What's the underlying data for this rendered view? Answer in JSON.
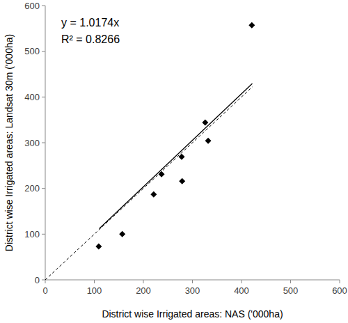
{
  "chart_data": {
    "type": "scatter",
    "x_label": "District wise Irrigated areas: NAS ('000ha)",
    "y_label": "District wise Irrigated areas: Landsat 30m ('000ha)",
    "annotations": [
      "y = 1.0174x",
      "R² = 0.8266"
    ],
    "xlim": [
      0,
      600
    ],
    "ylim": [
      0,
      600
    ],
    "xticks": [
      0,
      100,
      200,
      300,
      400,
      500,
      600
    ],
    "yticks": [
      0,
      100,
      200,
      300,
      400,
      500,
      600
    ],
    "grid": false,
    "series": [
      {
        "type": "scatter",
        "marker": "diamond",
        "color": "#000000",
        "x": [
          109,
          157,
          221,
          237,
          278,
          279,
          326,
          332,
          421
        ],
        "values": [
          73,
          100,
          187,
          231,
          269,
          216,
          344,
          304,
          557
        ]
      },
      {
        "type": "line",
        "line_style": "solid",
        "color": "#000000",
        "x": [
          110,
          422
        ],
        "values": [
          111.9,
          429.3
        ]
      },
      {
        "type": "line",
        "line_style": "dashed",
        "color": "#000000",
        "x": [
          0,
          422
        ],
        "values": [
          0,
          422
        ]
      }
    ]
  }
}
